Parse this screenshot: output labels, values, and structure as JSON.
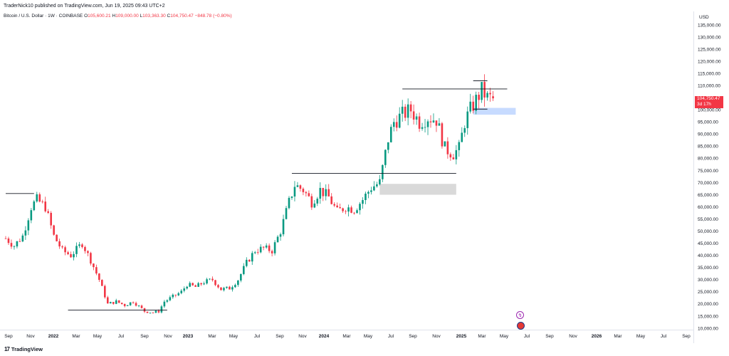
{
  "header": {
    "title": "TraderNick10 published on TradingView.com, Jun 19, 2025 09:43 UTC+2"
  },
  "ohlc": {
    "symbol": "Bitcoin / U.S. Dollar · 1W · COINBASE",
    "o_label": "O",
    "o_value": "105,600.21",
    "h_label": "H",
    "h_value": "109,000.00",
    "l_label": "L",
    "l_value": "103,363.30",
    "c_label": "C",
    "c_value": "104,750.47",
    "change": "−848.78 (−0.80%)"
  },
  "price_axis": {
    "currency": "USD"
  },
  "price_badge": {
    "price": "104,750.47",
    "countdown": "3d 17h",
    "color": "#f23645"
  },
  "brand": {
    "logo": "17",
    "name": "TradingView"
  },
  "colors": {
    "up": "#089981",
    "down": "#f23645",
    "zone_gray": "#d1d4dc",
    "zone_blue": "#bbd6ff",
    "line": "#131722"
  },
  "chart_data": {
    "type": "candlestick",
    "symbol": "BTCUSD",
    "timeframe": "1W",
    "y_axis": {
      "min": 10000,
      "max": 135000,
      "ticks": [
        10000,
        15000,
        20000,
        25000,
        30000,
        35000,
        40000,
        45000,
        50000,
        55000,
        60000,
        65000,
        70000,
        75000,
        80000,
        85000,
        90000,
        95000,
        100000,
        105000,
        110000,
        115000,
        120000,
        125000,
        130000,
        135000
      ],
      "tick_labels": [
        "10,000.00",
        "15,000.00",
        "20,000.00",
        "25,000.00",
        "30,000.00",
        "35,000.00",
        "40,000.00",
        "45,000.00",
        "50,000.00",
        "55,000.00",
        "60,000.00",
        "65,000.00",
        "70,000.00",
        "75,000.00",
        "80,000.00",
        "85,000.00",
        "90,000.00",
        "95,000.00",
        "100,000.00",
        "105,000.00",
        "110,000.00",
        "115,000.00",
        "120,000.00",
        "125,000.00",
        "130,000.00",
        "135,000.00"
      ]
    },
    "x_axis": {
      "labels": [
        "Sep",
        "Nov",
        "2022",
        "Mar",
        "May",
        "Jul",
        "Sep",
        "Nov",
        "2023",
        "Mar",
        "May",
        "Jul",
        "Sep",
        "Nov",
        "2024",
        "Mar",
        "May",
        "Jul",
        "Sep",
        "Nov",
        "2025",
        "Mar",
        "May",
        "Jul",
        "Sep",
        "Nov",
        "2026",
        "Mar",
        "May",
        "Jul",
        "Sep"
      ],
      "bold": [
        "2022",
        "2023",
        "2024",
        "2025",
        "2026"
      ]
    },
    "price_path": [
      [
        0,
        47000
      ],
      [
        3,
        44000
      ],
      [
        6,
        48000
      ],
      [
        9,
        60000
      ],
      [
        11,
        63000
      ],
      [
        14,
        60000
      ],
      [
        17,
        48000
      ],
      [
        20,
        42000
      ],
      [
        23,
        40000
      ],
      [
        27,
        45000
      ],
      [
        30,
        38000
      ],
      [
        33,
        30000
      ],
      [
        36,
        20000
      ],
      [
        39,
        21000
      ],
      [
        42,
        19500
      ],
      [
        45,
        21000
      ],
      [
        47,
        19000
      ],
      [
        49,
        17000
      ],
      [
        52,
        16500
      ],
      [
        54,
        17000
      ],
      [
        56,
        21000
      ],
      [
        59,
        23000
      ],
      [
        62,
        25000
      ],
      [
        64,
        28000
      ],
      [
        67,
        27000
      ],
      [
        70,
        29000
      ],
      [
        73,
        30000
      ],
      [
        76,
        26000
      ],
      [
        79,
        26500
      ],
      [
        82,
        30000
      ],
      [
        85,
        37000
      ],
      [
        88,
        42000
      ],
      [
        91,
        43000
      ],
      [
        94,
        42000
      ],
      [
        97,
        50000
      ],
      [
        100,
        62000
      ],
      [
        102,
        69000
      ],
      [
        105,
        67000
      ],
      [
        108,
        62000
      ],
      [
        111,
        67000
      ],
      [
        114,
        64000
      ],
      [
        117,
        58000
      ],
      [
        120,
        60000
      ],
      [
        123,
        59000
      ],
      [
        126,
        63000
      ],
      [
        129,
        68000
      ],
      [
        132,
        70000
      ],
      [
        135,
        88000
      ],
      [
        137,
        95000
      ],
      [
        140,
        98000
      ],
      [
        143,
        100000
      ],
      [
        146,
        95000
      ],
      [
        149,
        97000
      ],
      [
        152,
        96000
      ],
      [
        155,
        84000
      ],
      [
        158,
        82000
      ],
      [
        160,
        84000
      ],
      [
        162,
        95000
      ],
      [
        164,
        100000
      ],
      [
        166,
        104000
      ],
      [
        168,
        108000
      ],
      [
        170,
        105000
      ],
      [
        172,
        104750
      ]
    ],
    "weeks_total": 172,
    "levels": [
      {
        "price": 65500,
        "week_start": 0,
        "week_end": 10,
        "name": "resistance-2021"
      },
      {
        "price": 17500,
        "week_start": 22,
        "week_end": 57,
        "name": "support-2022"
      },
      {
        "price": 73800,
        "week_start": 101,
        "week_end": 159,
        "name": "resistance-2024"
      },
      {
        "price": 108600,
        "week_start": 140,
        "week_end": 177,
        "name": "resistance-2025"
      },
      {
        "price": 112000,
        "week_start": 165,
        "week_end": 170,
        "name": "ath-2025"
      },
      {
        "price": 100300,
        "week_start": 165,
        "week_end": 170,
        "name": "support-2025"
      }
    ],
    "zones": [
      {
        "low": 65000,
        "high": 69500,
        "week_start": 132,
        "week_end": 159,
        "color": "#d9d9d9",
        "name": "gray-zone"
      },
      {
        "low": 98000,
        "high": 100800,
        "week_start": 165,
        "week_end": 180,
        "color": "#c7dbff",
        "name": "blue-zone"
      }
    ]
  }
}
